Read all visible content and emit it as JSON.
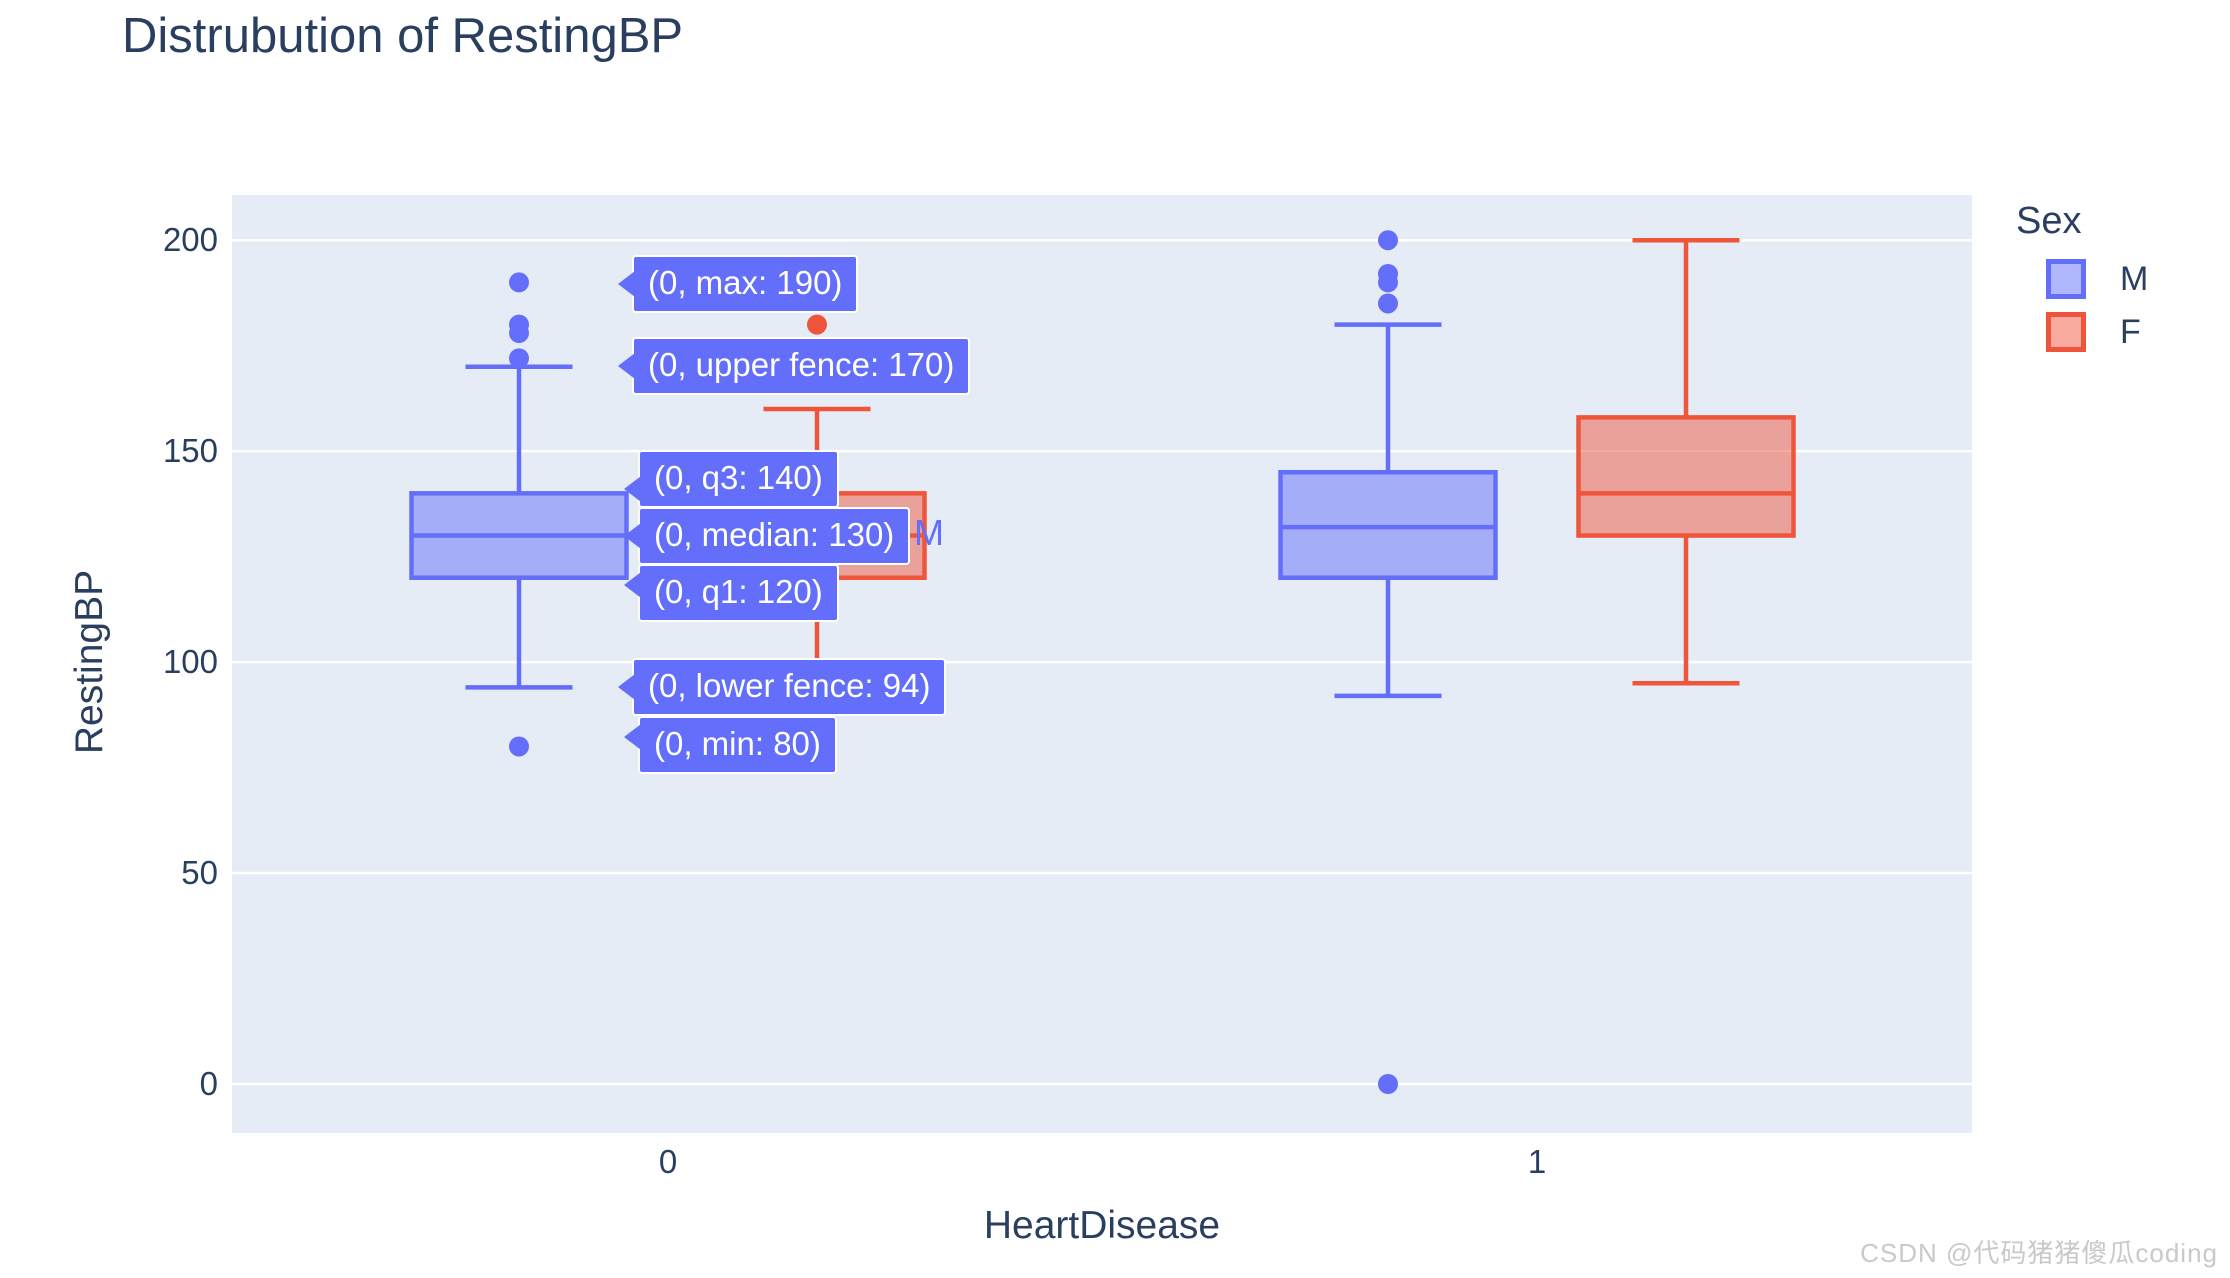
{
  "title": "Distrubution of RestingBP",
  "watermark": "CSDN @代码猪猪傻瓜coding",
  "x_axis": {
    "title": "HeartDisease",
    "tick_labels": [
      "0",
      "1"
    ]
  },
  "y_axis": {
    "title": "RestingBP",
    "tick_labels": [
      "0",
      "50",
      "100",
      "150",
      "200"
    ]
  },
  "legend": {
    "title": "Sex",
    "items": [
      {
        "label": "M",
        "color": "#636EFA"
      },
      {
        "label": "F",
        "color": "#EF553B"
      }
    ]
  },
  "hover": {
    "max": "(0, max: 190)",
    "upper_fence": "(0, upper fence: 170)",
    "q3": "(0, q3: 140)",
    "median": "(0, median: 130)",
    "median_trace_name": "M",
    "q1": "(0, q1: 120)",
    "lower_fence": "(0, lower fence: 94)",
    "min": "(0, min: 80)"
  },
  "colors": {
    "plot_bg": "#E5ECF6",
    "gridline": "#ffffff",
    "text": "#2a3f5f",
    "male": "#636EFA",
    "male_fill": "rgba(99,110,250,0.5)",
    "female": "#EF553B",
    "female_fill": "rgba(239,85,59,0.5)",
    "hover_bg": "#636EFA"
  },
  "chart_data": {
    "type": "box",
    "title": "Distrubution of RestingBP",
    "xlabel": "HeartDisease",
    "ylabel": "RestingBP",
    "categories": [
      "0",
      "1"
    ],
    "y_ticks": [
      0,
      50,
      100,
      150,
      200
    ],
    "ylim": [
      -12,
      212
    ],
    "grid": true,
    "legend_position": "right-top",
    "boxmode": "group",
    "series": [
      {
        "name": "M",
        "color": "#636EFA",
        "boxes": [
          {
            "category": "0",
            "min": 80,
            "lower_fence": 94,
            "q1": 120,
            "median": 130,
            "q3": 140,
            "upper_fence": 170,
            "max": 190,
            "outliers": [
              190,
              180,
              178,
              172,
              80
            ]
          },
          {
            "category": "1",
            "min": 0,
            "lower_fence": 92,
            "q1": 120,
            "median": 132,
            "q3": 145,
            "upper_fence": 180,
            "max": 200,
            "outliers": [
              200,
              192,
              190,
              185,
              0
            ]
          }
        ]
      },
      {
        "name": "F",
        "color": "#EF553B",
        "boxes": [
          {
            "category": "0",
            "lower_fence": 95,
            "q1": 120,
            "median": 130,
            "q3": 140,
            "upper_fence": 160,
            "max": 180,
            "outliers": [
              180
            ]
          },
          {
            "category": "1",
            "lower_fence": 95,
            "q1": 130,
            "median": 140,
            "q3": 158,
            "upper_fence": 200,
            "max": 200,
            "outliers": []
          }
        ]
      }
    ]
  }
}
